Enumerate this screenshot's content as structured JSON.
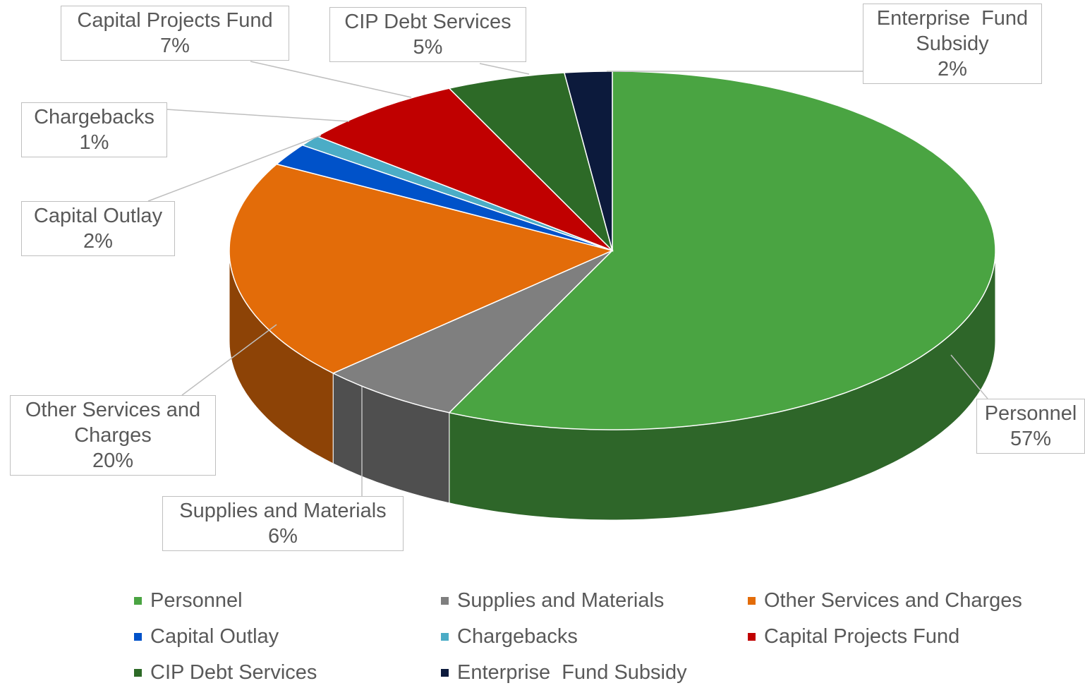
{
  "chart_data": {
    "type": "pie",
    "categories": [
      "Personnel",
      "Supplies and Materials",
      "Other Services and Charges",
      "Capital Outlay",
      "Chargebacks",
      "Capital Projects Fund",
      "CIP Debt Services",
      "Enterprise  Fund Subsidy"
    ],
    "values": [
      57,
      6,
      20,
      2,
      1,
      7,
      5,
      2
    ],
    "value_labels": [
      "57%",
      "6%",
      "20%",
      "2%",
      "1%",
      "7%",
      "5%",
      "2%"
    ],
    "colors": [
      "#4aa442",
      "#7f7f7f",
      "#e36c09",
      "#0052c9",
      "#4bacc6",
      "#c00000",
      "#2d6a27",
      "#0c1a3c"
    ],
    "legend": "bottom"
  }
}
